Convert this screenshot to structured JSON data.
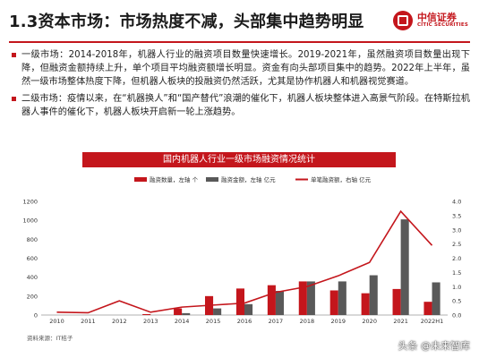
{
  "header": {
    "title": "1.3资本市场：市场热度不减，头部集中趋势明显",
    "logo_cn": "中信证券",
    "logo_en": "CITIC SECURITIES"
  },
  "bullets": [
    "一级市场：2014-2018年，机器人行业的融资项目数量快速增长。2019-2021年，虽然融资项目数量出现下降，但融资金额持续上升，单个项目平均融资额增长明显。资金有向头部项目集中的趋势。2022年上半年，虽然一级市场整体热度下降，但机器人板块的投融资仍然活跃，尤其是协作机器人和机器视觉赛道。",
    "二级市场：疫情以来，在“机器换人”和“国产替代”浪潮的催化下，机器人板块整体进入高景气阶段。在特斯拉机器人事件的催化下，机器人板块开启新一轮上涨趋势。"
  ],
  "source": "资料来源：IT桔子",
  "watermark": "头条 @未来智库",
  "chart_data": {
    "type": "bar",
    "title": "国内机器人行业一级市场融资情况统计",
    "categories": [
      "2010",
      "2011",
      "2012",
      "2013",
      "2014",
      "2015",
      "2016",
      "2017",
      "2018",
      "2019",
      "2020",
      "2021",
      "2022H1"
    ],
    "series": [
      {
        "name": "融资数量，左轴 个",
        "type": "bar",
        "axis": "left",
        "color": "#c4161c",
        "values": [
          0,
          0,
          0,
          10,
          70,
          200,
          280,
          315,
          355,
          260,
          230,
          275,
          140
        ]
      },
      {
        "name": "融资金额，左轴 亿元",
        "type": "bar",
        "axis": "left",
        "color": "#595959",
        "values": [
          0,
          0,
          0,
          0,
          20,
          70,
          115,
          255,
          355,
          355,
          420,
          1010,
          345
        ]
      },
      {
        "name": "单笔融资额，右轴 亿元",
        "type": "line",
        "axis": "right",
        "color": "#c4161c",
        "values": [
          0.1,
          0.08,
          0.5,
          0.1,
          0.28,
          0.35,
          0.42,
          0.8,
          1.0,
          1.38,
          1.85,
          3.65,
          2.45
        ]
      }
    ],
    "ylim_left": [
      0,
      1200
    ],
    "yticks_left": [
      "0",
      "200",
      "400",
      "600",
      "800",
      "1000",
      "1200"
    ],
    "ylim_right": [
      0,
      4
    ],
    "yticks_right": [
      "0.0",
      "0.5",
      "1.0",
      "1.5",
      "2.0",
      "2.5",
      "3.0",
      "3.5",
      "4.0"
    ],
    "legend_position": "top",
    "grid": false
  }
}
